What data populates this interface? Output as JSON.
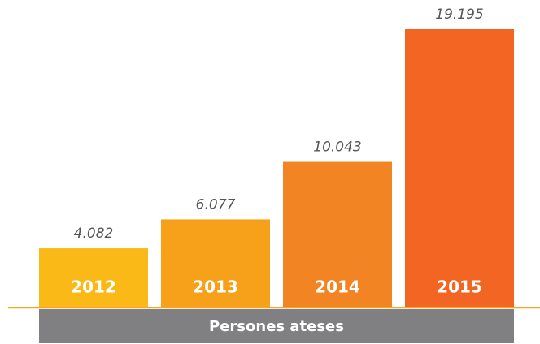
{
  "chart_data": {
    "type": "bar",
    "categories": [
      "2012",
      "2013",
      "2014",
      "2015"
    ],
    "values": [
      4082,
      6077,
      10043,
      19195
    ],
    "value_labels": [
      "4.082",
      "6.077",
      "10.043",
      "19.195"
    ],
    "colors": [
      "#fbb917",
      "#f7a11b",
      "#f28424",
      "#f26522"
    ],
    "x_label": "Persones ateses"
  }
}
